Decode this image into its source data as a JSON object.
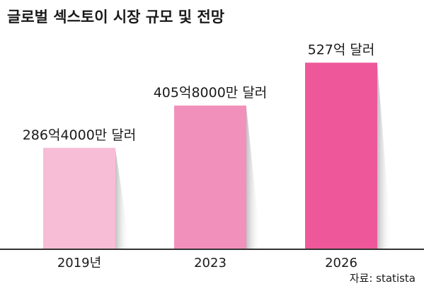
{
  "chart_data": {
    "type": "bar",
    "title": "글로벌 섹스토이 시장 규모 및 전망",
    "categories": [
      "2019년",
      "2023",
      "2026"
    ],
    "values": [
      286.4,
      405.8,
      527
    ],
    "value_labels": [
      "286억4000만 달러",
      "405억8000만 달러",
      "527억 달러"
    ],
    "unit": "억 달러",
    "ylim": [
      0,
      620
    ],
    "grid": false,
    "legend": "none",
    "colors": [
      "#f7bcd6",
      "#f290bc",
      "#ee589b"
    ],
    "shadow_color": "#d2d2d2",
    "baseline_color": "#333333",
    "source": "자료: statista"
  }
}
